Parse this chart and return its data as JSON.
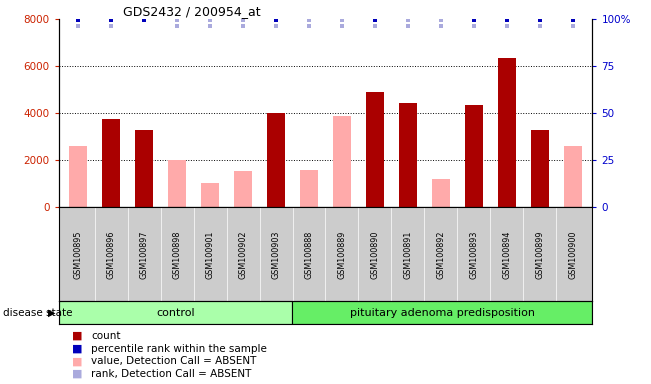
{
  "title": "GDS2432 / 200954_at",
  "samples": [
    "GSM100895",
    "GSM100896",
    "GSM100897",
    "GSM100898",
    "GSM100901",
    "GSM100902",
    "GSM100903",
    "GSM100888",
    "GSM100889",
    "GSM100890",
    "GSM100891",
    "GSM100892",
    "GSM100893",
    "GSM100894",
    "GSM100899",
    "GSM100900"
  ],
  "count_values": [
    0,
    3750,
    3300,
    0,
    0,
    0,
    4000,
    0,
    0,
    4900,
    4450,
    0,
    4350,
    6350,
    3300,
    0
  ],
  "absent_values": [
    2600,
    0,
    0,
    2000,
    1050,
    1550,
    0,
    1600,
    3900,
    0,
    0,
    1200,
    0,
    0,
    0,
    2600
  ],
  "pct_rank_is_blue": [
    true,
    true,
    true,
    false,
    false,
    false,
    true,
    false,
    false,
    true,
    false,
    false,
    true,
    true,
    true,
    true
  ],
  "absent_rank_show": [
    true,
    true,
    false,
    true,
    true,
    true,
    true,
    true,
    true,
    true,
    true,
    true,
    true,
    true,
    true,
    true
  ],
  "control_count": 7,
  "disease_count": 9,
  "ylim_left": [
    0,
    8000
  ],
  "ylim_right": [
    0,
    100
  ],
  "bar_color_count": "#aa0000",
  "bar_color_absent": "#ffaaaa",
  "dot_color_blue": "#0000bb",
  "dot_color_lightblue": "#aaaadd",
  "group_color_control": "#aaffaa",
  "group_color_disease": "#66ee66",
  "label_gray": "#cccccc"
}
